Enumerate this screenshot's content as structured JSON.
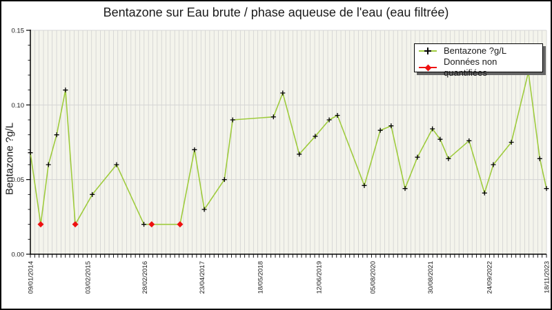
{
  "title": "Bentazone sur Eau brute / phase aqueuse de l'eau (eau filtrée)",
  "legend": {
    "position": "top-right",
    "items": [
      {
        "label": "Bentazone ?g/L",
        "marker": "plus-on-green-line"
      },
      {
        "label": "Données non quantifiées",
        "marker": "red-diamond-on-red-line"
      }
    ]
  },
  "colors": {
    "line": "#9ecb3c",
    "unquantified": "#ee1111",
    "marker": "#000000",
    "plot_bg": "#f4f4ec",
    "grid_vertical": "#cccccc",
    "grid_horizontal": "#d4d4d4",
    "axis": "#000000",
    "text": "#1a1a1a",
    "legend_shadow": "#666666",
    "background": "#ffffff"
  },
  "chart_data": {
    "type": "line",
    "title": "Bentazone sur Eau brute / phase aqueuse de l'eau (eau filtrée)",
    "xlabel": "",
    "ylabel": "Bentazone ?g/L",
    "ylim": [
      0,
      0.15
    ],
    "yticks": [
      {
        "value": 0.0,
        "label": "0.00"
      },
      {
        "value": 0.05,
        "label": "0.05"
      },
      {
        "value": 0.1,
        "label": "0.10"
      },
      {
        "value": 0.15,
        "label": "0.15"
      }
    ],
    "y_minor_step": 0.01,
    "horizontal_gridlines": [
      0.05,
      0.1,
      0.15
    ],
    "vertical_gridlines": 118,
    "grid": "on",
    "x_axis_note": "x values are fractions of the axis span from 09/01/2014 to 18/11/2023; monthly minor ticks",
    "xticks": [
      {
        "label": "09/01/2014",
        "x": 0.0
      },
      {
        "label": "03/02/2015",
        "x": 0.111
      },
      {
        "label": "28/02/2016",
        "x": 0.221
      },
      {
        "label": "23/04/2017",
        "x": 0.332
      },
      {
        "label": "18/05/2018",
        "x": 0.445
      },
      {
        "label": "12/06/2019",
        "x": 0.559
      },
      {
        "label": "05/08/2020",
        "x": 0.663
      },
      {
        "label": "30/08/2021",
        "x": 0.775
      },
      {
        "label": "24/09/2022",
        "x": 0.889
      },
      {
        "label": "18/11/2023",
        "x": 1.0
      }
    ],
    "series": [
      {
        "name": "Bentazone ?g/L",
        "marker": "plus",
        "color": "#9ecb3c"
      },
      {
        "name": "Données non quantifiées",
        "marker": "diamond",
        "color": "#ee1111"
      }
    ],
    "points": [
      {
        "x": 0.0,
        "y": 0.068
      },
      {
        "x": 0.02,
        "y": 0.02,
        "unquantified": true
      },
      {
        "x": 0.035,
        "y": 0.06
      },
      {
        "x": 0.051,
        "y": 0.08
      },
      {
        "x": 0.068,
        "y": 0.11
      },
      {
        "x": 0.087,
        "y": 0.02,
        "unquantified": true
      },
      {
        "x": 0.12,
        "y": 0.04
      },
      {
        "x": 0.167,
        "y": 0.06
      },
      {
        "x": 0.22,
        "y": 0.02
      },
      {
        "x": 0.235,
        "y": 0.02,
        "unquantified": true
      },
      {
        "x": 0.29,
        "y": 0.02,
        "unquantified": true
      },
      {
        "x": 0.318,
        "y": 0.07
      },
      {
        "x": 0.337,
        "y": 0.03
      },
      {
        "x": 0.376,
        "y": 0.05
      },
      {
        "x": 0.392,
        "y": 0.09
      },
      {
        "x": 0.471,
        "y": 0.092
      },
      {
        "x": 0.489,
        "y": 0.108
      },
      {
        "x": 0.521,
        "y": 0.067
      },
      {
        "x": 0.552,
        "y": 0.079
      },
      {
        "x": 0.579,
        "y": 0.09
      },
      {
        "x": 0.595,
        "y": 0.093
      },
      {
        "x": 0.647,
        "y": 0.046
      },
      {
        "x": 0.678,
        "y": 0.083
      },
      {
        "x": 0.699,
        "y": 0.086
      },
      {
        "x": 0.726,
        "y": 0.044
      },
      {
        "x": 0.75,
        "y": 0.065
      },
      {
        "x": 0.779,
        "y": 0.084
      },
      {
        "x": 0.794,
        "y": 0.077
      },
      {
        "x": 0.81,
        "y": 0.064
      },
      {
        "x": 0.85,
        "y": 0.076
      },
      {
        "x": 0.88,
        "y": 0.041
      },
      {
        "x": 0.897,
        "y": 0.06
      },
      {
        "x": 0.932,
        "y": 0.075
      },
      {
        "x": 0.965,
        "y": 0.122
      },
      {
        "x": 0.987,
        "y": 0.064
      },
      {
        "x": 1.0,
        "y": 0.044
      }
    ]
  }
}
